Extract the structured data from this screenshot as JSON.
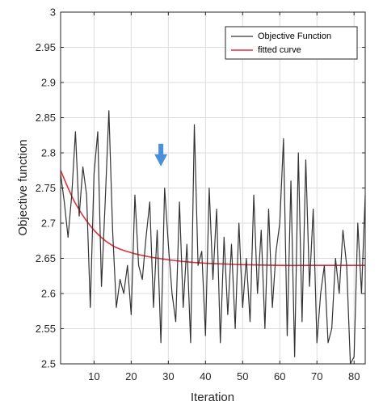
{
  "chart_data": {
    "type": "line",
    "xlabel": "Iteration",
    "ylabel": "Objective function",
    "xlim": [
      1,
      83
    ],
    "ylim": [
      2.5,
      3.0
    ],
    "xticks": [
      "10",
      "20",
      "30",
      "40",
      "50",
      "60",
      "70",
      "80"
    ],
    "yticks": [
      "2.5",
      "2.55",
      "2.6",
      "2.65",
      "2.7",
      "2.75",
      "2.8",
      "2.85",
      "2.9",
      "2.95",
      "3"
    ],
    "grid": true,
    "legend_position": "top-right",
    "series": [
      {
        "name": "Objective Function",
        "color": "#333333",
        "x": [
          1,
          2,
          3,
          4,
          5,
          6,
          7,
          8,
          9,
          10,
          11,
          12,
          13,
          14,
          15,
          16,
          17,
          18,
          19,
          20,
          21,
          22,
          23,
          24,
          25,
          26,
          27,
          28,
          29,
          30,
          31,
          32,
          33,
          34,
          35,
          36,
          37,
          38,
          39,
          40,
          41,
          42,
          43,
          44,
          45,
          46,
          47,
          48,
          49,
          50,
          51,
          52,
          53,
          54,
          55,
          56,
          57,
          58,
          59,
          60,
          61,
          62,
          63,
          64,
          65,
          66,
          67,
          68,
          69,
          70,
          71,
          72,
          73,
          74,
          75,
          76,
          77,
          78,
          79,
          80,
          81,
          82,
          83
        ],
        "y": [
          2.77,
          2.73,
          2.68,
          2.74,
          2.83,
          2.71,
          2.78,
          2.74,
          2.58,
          2.77,
          2.83,
          2.61,
          2.73,
          2.86,
          2.69,
          2.58,
          2.62,
          2.6,
          2.64,
          2.57,
          2.74,
          2.64,
          2.62,
          2.68,
          2.73,
          2.58,
          2.69,
          2.53,
          2.75,
          2.67,
          2.6,
          2.56,
          2.73,
          2.58,
          2.67,
          2.53,
          2.84,
          2.64,
          2.66,
          2.54,
          2.75,
          2.62,
          2.72,
          2.53,
          2.68,
          2.57,
          2.67,
          2.55,
          2.7,
          2.58,
          2.65,
          2.56,
          2.74,
          2.6,
          2.69,
          2.55,
          2.72,
          2.58,
          2.66,
          2.7,
          2.82,
          2.54,
          2.76,
          2.51,
          2.8,
          2.56,
          2.79,
          2.61,
          2.72,
          2.53,
          2.6,
          2.64,
          2.53,
          2.55,
          2.65,
          2.6,
          2.69,
          2.64,
          2.5,
          2.51,
          2.7,
          2.6,
          2.74
        ]
      },
      {
        "name": "fitted curve",
        "color": "#e0303c",
        "x": [
          1,
          5,
          10,
          15,
          20,
          25,
          30,
          35,
          40,
          45,
          50,
          60,
          70,
          83
        ],
        "y": [
          2.775,
          2.728,
          2.69,
          2.668,
          2.658,
          2.652,
          2.648,
          2.645,
          2.643,
          2.642,
          2.641,
          2.64,
          2.64,
          2.64
        ]
      }
    ],
    "annotation": {
      "type": "arrow",
      "x": 28,
      "y": 2.783,
      "color": "#4a8fd9"
    }
  }
}
